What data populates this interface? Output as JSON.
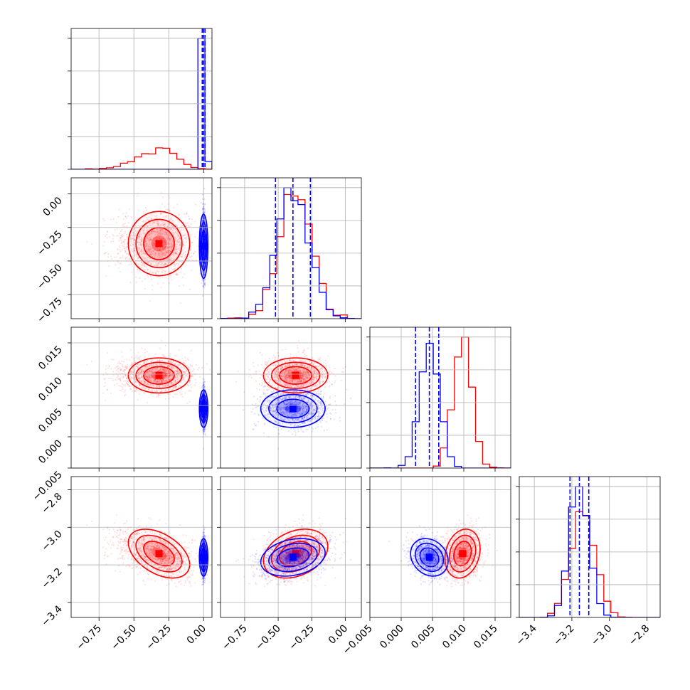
{
  "chart_data": {
    "type": "corner",
    "parameters": 4,
    "series": [
      {
        "color": "#ff0000",
        "means": [
          -0.32,
          -0.37,
          0.0098,
          -3.14
        ],
        "sds": [
          0.11,
          0.12,
          0.0014,
          0.065
        ],
        "correlations": {
          "3-0": -0.45,
          "3-1": 0.3,
          "3-2": 0.2,
          "1-0": 0.0,
          "2-0": 0.0,
          "2-1": 0.0
        }
      },
      {
        "color": "#0000ff",
        "means": [
          0.0,
          -0.39,
          0.0045,
          -3.16
        ],
        "sds": [
          0.006,
          0.12,
          0.0015,
          0.05
        ],
        "correlations": {
          "3-2": -0.2,
          "3-1": 0.25,
          "1-0": 0.0,
          "2-0": 0.0,
          "2-1": 0.0,
          "3-0": 0.0
        }
      }
    ],
    "quantile_lines": {
      "color": "#0000ff",
      "values": [
        [
          -0.01,
          0.0,
          0.01
        ],
        [
          -0.52,
          -0.39,
          -0.26
        ],
        [
          0.0023,
          0.0045,
          0.006
        ],
        [
          -3.21,
          -3.16,
          -3.11
        ]
      ]
    },
    "axes": [
      {
        "range": [
          -0.95,
          0.06
        ],
        "ticks": [
          -0.75,
          -0.5,
          -0.25,
          0.0
        ],
        "tick_labels": [
          "−0.75",
          "−0.50",
          "−0.25",
          "0.00"
        ]
      },
      {
        "range": [
          -0.93,
          0.12
        ],
        "ticks": [
          -0.75,
          -0.5,
          -0.25,
          0.0
        ],
        "tick_labels": [
          "−0.75",
          "−0.50",
          "−0.25",
          "0.00"
        ]
      },
      {
        "range": [
          -0.005,
          0.0175
        ],
        "ticks": [
          -0.005,
          0.0,
          0.005,
          0.01,
          0.015
        ],
        "tick_labels": [
          "−0.005",
          "0.000",
          "0.005",
          "0.010",
          "0.015"
        ]
      },
      {
        "range": [
          -3.48,
          -2.73
        ],
        "ticks": [
          -3.4,
          -3.2,
          -3.0,
          -2.8
        ],
        "tick_labels": [
          "−3.4",
          "−3.2",
          "−3.0",
          "−2.8"
        ]
      }
    ],
    "grid": true,
    "title": "",
    "xlabel": "",
    "ylabel": ""
  }
}
